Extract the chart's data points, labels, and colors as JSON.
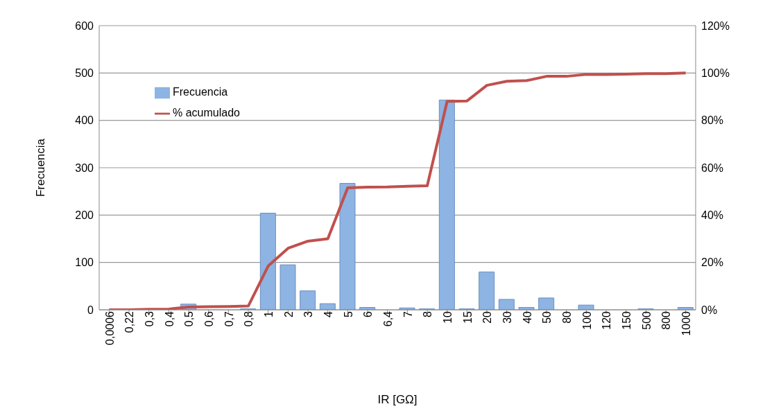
{
  "chart_data": {
    "type": "bar",
    "xlabel": "IR [GΩ]",
    "ylabel": "Frecuencia",
    "categories": [
      "0,0006",
      "0,22",
      "0,3",
      "0,4",
      "0,5",
      "0,6",
      "0,7",
      "0,8",
      "1",
      "2",
      "3",
      "4",
      "5",
      "6",
      "6,4",
      "7",
      "8",
      "10",
      "15",
      "20",
      "30",
      "40",
      "50",
      "80",
      "100",
      "120",
      "150",
      "500",
      "800",
      "1000"
    ],
    "series": [
      {
        "name": "Frecuencia",
        "color": "#8db4e2",
        "values": [
          0,
          0,
          0,
          0,
          12,
          null,
          null,
          2,
          204,
          95,
          40,
          13,
          267,
          5,
          0,
          4,
          2,
          443,
          2,
          80,
          22,
          5,
          25,
          0,
          10,
          0,
          0,
          2,
          0,
          5
        ]
      },
      {
        "name": "% acumulado",
        "type": "line",
        "axis": "y2",
        "color": "#c0504d",
        "values": [
          0,
          0,
          0.2,
          0.3,
          1.2,
          1.3,
          1.4,
          1.6,
          18.5,
          26,
          29,
          30,
          51.5,
          51.8,
          51.9,
          52.2,
          52.4,
          88,
          88.2,
          94.8,
          96.5,
          96.8,
          98.6,
          98.6,
          99.4,
          99.4,
          99.5,
          99.7,
          99.7,
          100
        ]
      }
    ],
    "ylim": [
      0,
      600
    ],
    "yticks": [
      0,
      100,
      200,
      300,
      400,
      500,
      600
    ],
    "y2lim": [
      0,
      120
    ],
    "y2ticks": [
      {
        "value": 0,
        "label": "0%"
      },
      {
        "value": 20,
        "label": "20%"
      },
      {
        "value": 40,
        "label": "40%"
      },
      {
        "value": 60,
        "label": "60%"
      },
      {
        "value": 80,
        "label": "80%"
      },
      {
        "value": 100,
        "label": "100%"
      },
      {
        "value": 120,
        "label": "120%"
      }
    ],
    "grid": "y",
    "legend": "top left",
    "marker": "none",
    "line_style": "solid"
  }
}
